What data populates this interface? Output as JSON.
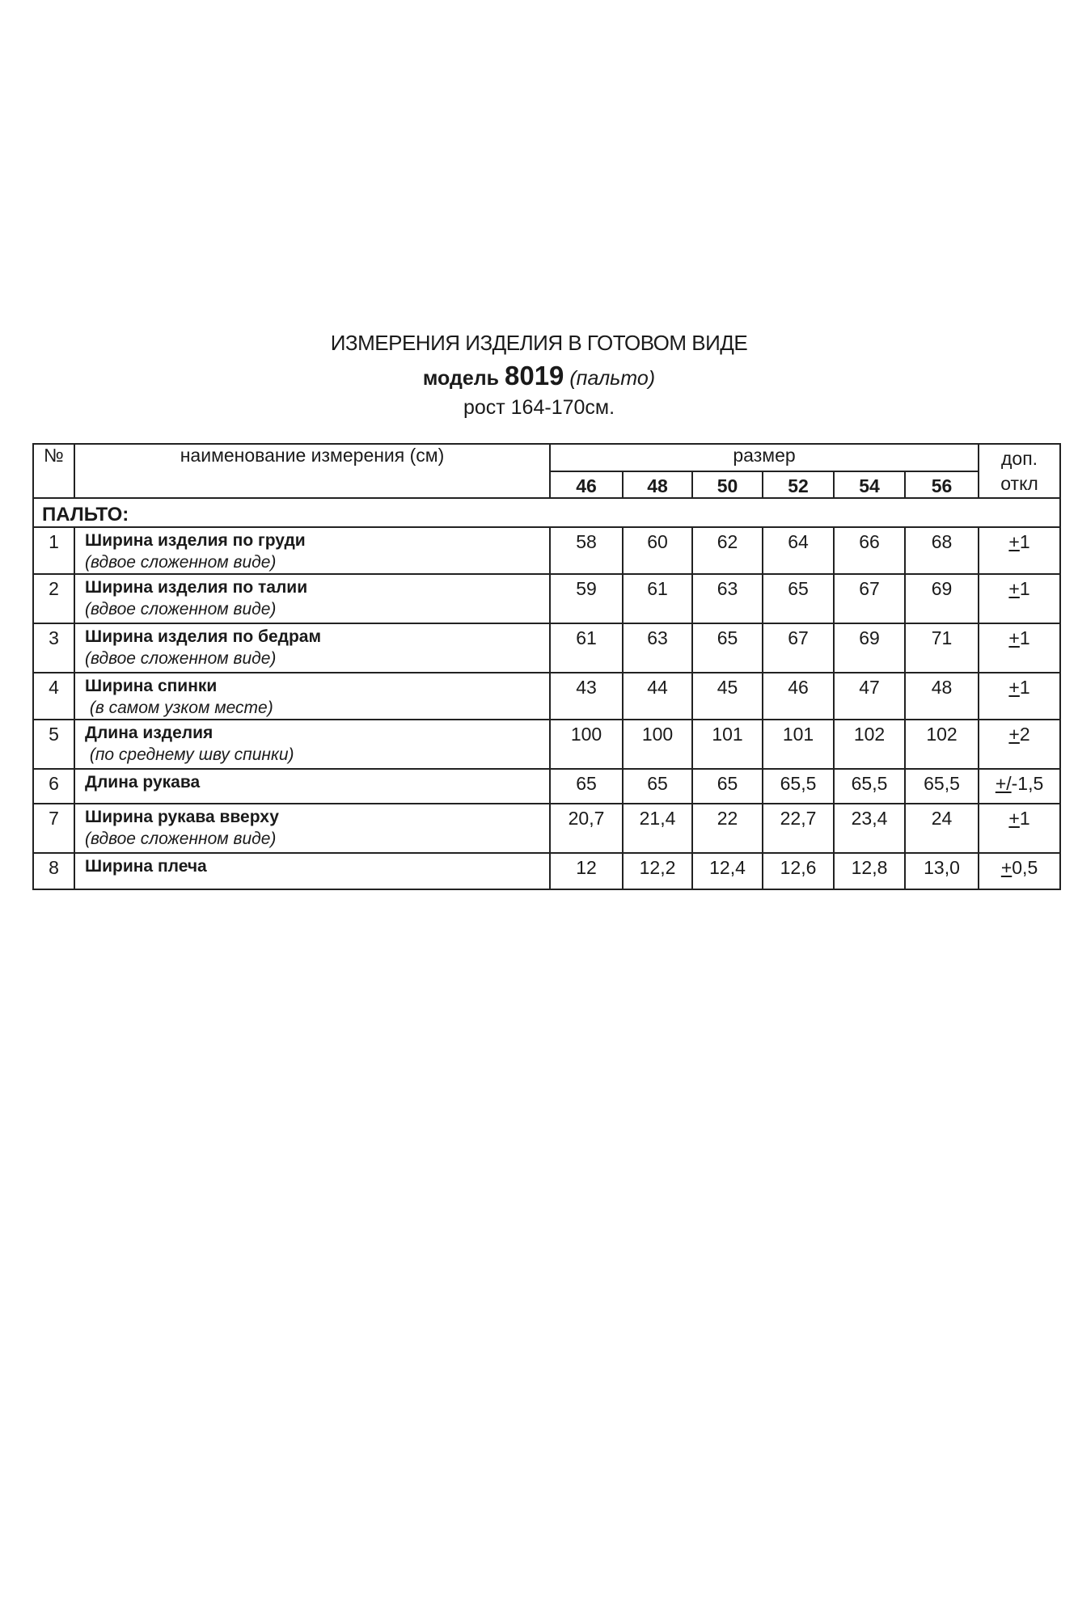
{
  "header": {
    "title": "ИЗМЕРЕНИЯ ИЗДЕЛИЯ В ГОТОВОМ ВИДЕ",
    "model_label": "модель",
    "model_number": "8019",
    "model_type": "(пальто)",
    "height": "рост 164-170см."
  },
  "table": {
    "col_no": "№",
    "col_name": "наименование измерения (см)",
    "col_size": "размер",
    "col_tol_1": "доп.",
    "col_tol_2": "откл",
    "sizes": [
      "46",
      "48",
      "50",
      "52",
      "54",
      "56"
    ],
    "section": "ПАЛЬТО:",
    "rows": [
      {
        "no": "1",
        "name": "Ширина изделия по груди",
        "note": "(вдвое сложенном виде)",
        "values": [
          "58",
          "60",
          "62",
          "64",
          "66",
          "68"
        ],
        "tol": "+1"
      },
      {
        "no": "2",
        "name": "Ширина изделия по талии",
        "note": "(вдвое сложенном виде)",
        "values": [
          "59",
          "61",
          "63",
          "65",
          "67",
          "69"
        ],
        "tol": "+1"
      },
      {
        "no": "3",
        "name": "Ширина изделия по бедрам",
        "note": "(вдвое сложенном виде)",
        "values": [
          "61",
          "63",
          "65",
          "67",
          "69",
          "71"
        ],
        "tol": "+1"
      },
      {
        "no": "4",
        "name": "Ширина спинки",
        "note": " (в самом узком месте)",
        "values": [
          "43",
          "44",
          "45",
          "46",
          "47",
          "48"
        ],
        "tol": "+1"
      },
      {
        "no": "5",
        "name": "Длина изделия",
        "note": " (по среднему шву спинки)",
        "values": [
          "100",
          "100",
          "101",
          "101",
          "102",
          "102"
        ],
        "tol": "+2"
      },
      {
        "no": "6",
        "name": "Длина рукава",
        "note": "",
        "values": [
          "65",
          "65",
          "65",
          "65,5",
          "65,5",
          "65,5"
        ],
        "tol": "+/-1,5"
      },
      {
        "no": "7",
        "name": "Ширина рукава вверху",
        "note": "(вдвое сложенном виде)",
        "values": [
          "20,7",
          "21,4",
          "22",
          "22,7",
          "23,4",
          "24"
        ],
        "tol": "+1"
      },
      {
        "no": "8",
        "name": "Ширина плеча",
        "note": "",
        "values": [
          "12",
          "12,2",
          "12,4",
          "12,6",
          "12,8",
          "13,0"
        ],
        "tol": "+0,5"
      }
    ]
  }
}
